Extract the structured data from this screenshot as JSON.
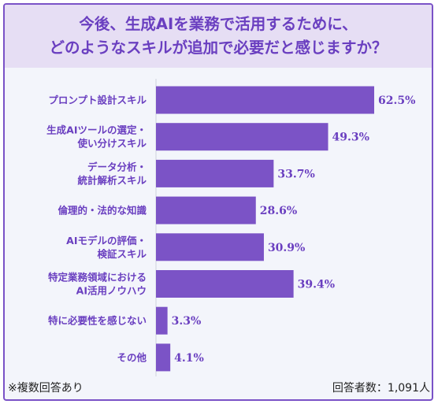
{
  "title": {
    "line1": "今後、生成AIを業務で活用するために、",
    "line2": "どのようなスキルが追加で必要だと感じますか？"
  },
  "chart_data": {
    "type": "bar",
    "orientation": "horizontal",
    "categories": [
      [
        "プロンプト設計スキル"
      ],
      [
        "生成AIツールの選定・",
        "使い分けスキル"
      ],
      [
        "データ分析・",
        "統計解析スキル"
      ],
      [
        "倫理的・法的な知識"
      ],
      [
        "AIモデルの評価・",
        "検証スキル"
      ],
      [
        "特定業務領域における",
        "AI活用ノウハウ"
      ],
      [
        "特に必要性を感じない"
      ],
      [
        "その他"
      ]
    ],
    "values": [
      62.5,
      49.3,
      33.7,
      28.6,
      30.9,
      39.4,
      3.3,
      4.1
    ],
    "value_labels": [
      "62.5%",
      "49.3%",
      "33.7%",
      "28.6%",
      "30.9%",
      "39.4%",
      "3.3%",
      "4.1%"
    ],
    "unit": "%",
    "xlim": [
      0,
      66
    ],
    "grid": false,
    "legend": false,
    "colors": {
      "bar": "#7b53c6",
      "label": "#6a3fc0",
      "value": "#6a3fc0",
      "axis": "#cfd3dc"
    }
  },
  "footer": {
    "note": "※複数回答あり",
    "respondents": "回答者数：1,091人"
  }
}
